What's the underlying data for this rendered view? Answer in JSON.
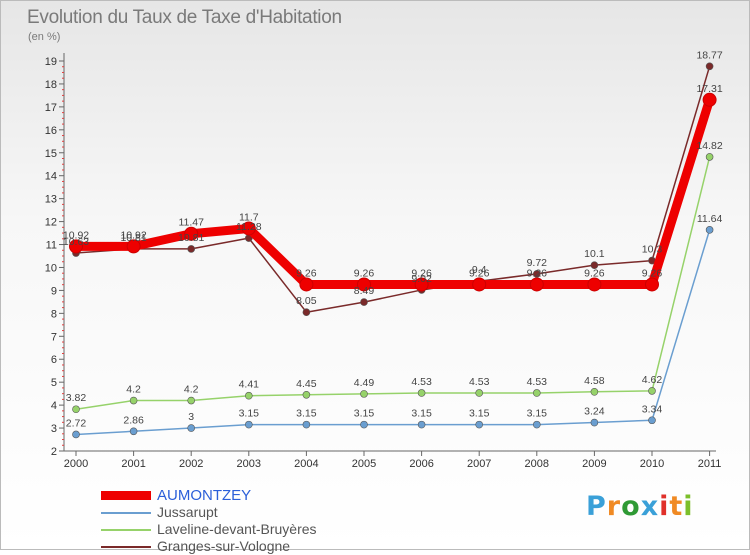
{
  "title": "Evolution du Taux de Taxe d'Habitation",
  "unit": "(en %)",
  "logo": {
    "letters": [
      "P",
      "r",
      "o",
      "x",
      "i",
      "t",
      "i"
    ],
    "colors": [
      "#3aa0d8",
      "#f08a24",
      "#2f9a35",
      "#3aa0d8",
      "#e0302a",
      "#f08a24",
      "#7bbf2a"
    ]
  },
  "chart_data": {
    "type": "line",
    "title": "Evolution du Taux de Taxe d'Habitation",
    "ylabel": "(en %)",
    "x": [
      "2000",
      "2001",
      "2002",
      "2003",
      "2004",
      "2005",
      "2006",
      "2007",
      "2008",
      "2009",
      "2010",
      "2011"
    ],
    "ylim": [
      2,
      19
    ],
    "yticks": [
      2,
      3,
      4,
      5,
      6,
      7,
      8,
      9,
      10,
      11,
      12,
      13,
      14,
      15,
      16,
      17,
      18,
      19
    ],
    "grid": false,
    "legend": "bottom-left",
    "series": [
      {
        "name": "AUMONTZEY",
        "color": "#ee0000",
        "values": [
          10.92,
          10.92,
          11.47,
          11.7,
          9.26,
          9.26,
          9.26,
          9.26,
          9.26,
          9.26,
          9.26,
          17.31
        ],
        "labels": [
          "10.92",
          "10.92",
          "11.47",
          "11.7",
          "9.26",
          "9.26",
          "9.26",
          "9.26",
          "9.26",
          "9.26",
          "9.26",
          "17.31"
        ]
      },
      {
        "name": "Jussarupt",
        "color": "#6a9ed0",
        "values": [
          2.72,
          2.86,
          3,
          3.15,
          3.15,
          3.15,
          3.15,
          3.15,
          3.15,
          3.24,
          3.34,
          11.64
        ],
        "labels": [
          "2.72",
          "2.86",
          "3",
          "3.15",
          "3.15",
          "3.15",
          "3.15",
          "3.15",
          "3.15",
          "3.24",
          "3.34",
          "11.64"
        ]
      },
      {
        "name": "Laveline-devant-Bruyères",
        "color": "#96d26a",
        "values": [
          3.82,
          4.2,
          4.2,
          4.41,
          4.45,
          4.49,
          4.53,
          4.53,
          4.53,
          4.58,
          4.62,
          14.82
        ],
        "labels": [
          "3.82",
          "4.2",
          "4.2",
          "4.41",
          "4.45",
          "4.49",
          "4.53",
          "4.53",
          "4.53",
          "4.58",
          "4.62",
          "14.82"
        ]
      },
      {
        "name": "Granges-sur-Vologne",
        "color": "#7a2a2a",
        "values": [
          10.63,
          10.81,
          10.81,
          11.28,
          8.05,
          8.49,
          9.02,
          9.4,
          9.72,
          10.1,
          10.3,
          18.77
        ],
        "labels": [
          "10.63",
          "10.81",
          "10.81",
          "11.28",
          "8.05",
          "8.49",
          "9.02",
          "9.4",
          "9.72",
          "10.1",
          "10.3",
          "18.77"
        ]
      }
    ]
  }
}
